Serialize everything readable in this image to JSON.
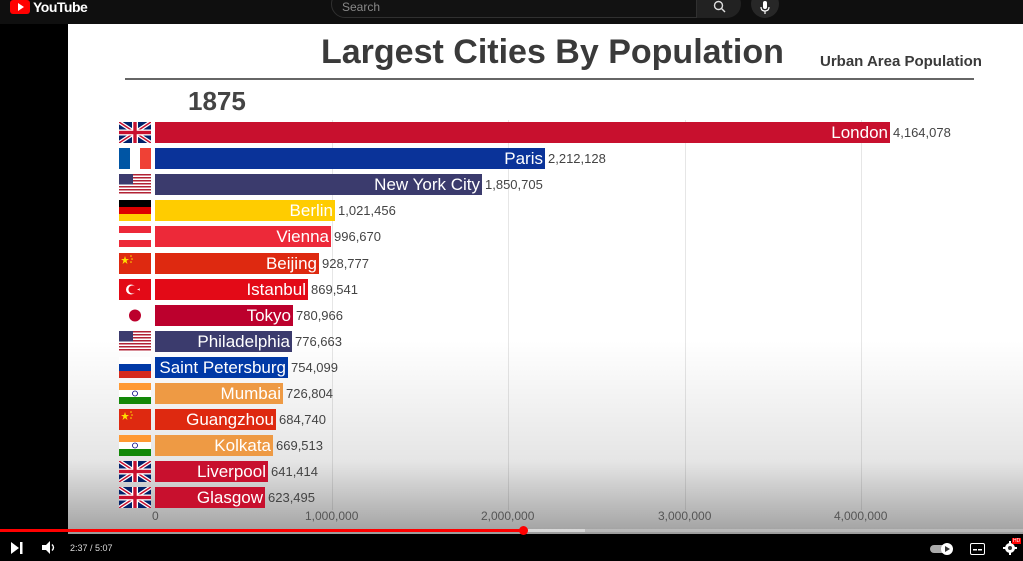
{
  "youtube": {
    "logo_text": "YouTube",
    "search_placeholder": "Search",
    "time_display": "2:37 / 5:07",
    "progress_fraction": 0.511,
    "buffered_fraction": 0.572,
    "hd_badge": "HD"
  },
  "chart_data": {
    "type": "bar",
    "title": "Largest Cities By Population",
    "subtitle": "Urban Area Population",
    "year": "1875",
    "xlim": [
      0,
      4750000
    ],
    "ticks": [
      {
        "value": 0,
        "label": "0"
      },
      {
        "value": 1000000,
        "label": "1,000,000"
      },
      {
        "value": 2000000,
        "label": "2,000,000"
      },
      {
        "value": 3000000,
        "label": "3,000,000"
      },
      {
        "value": 4000000,
        "label": "4,000,000"
      }
    ],
    "bars": [
      {
        "city": "London",
        "value": 4164078,
        "label": "4,164,078",
        "color": "#c8102e",
        "flag": "uk"
      },
      {
        "city": "Paris",
        "value": 2212128,
        "label": "2,212,128",
        "color": "#0a3399",
        "flag": "fr"
      },
      {
        "city": "New York City",
        "value": 1850705,
        "label": "1,850,705",
        "color": "#3b3b6d",
        "flag": "us"
      },
      {
        "city": "Berlin",
        "value": 1021456,
        "label": "1,021,456",
        "color": "#ffcc00",
        "flag": "de"
      },
      {
        "city": "Vienna",
        "value": 996670,
        "label": "996,670",
        "color": "#ed2939",
        "flag": "at"
      },
      {
        "city": "Beijing",
        "value": 928777,
        "label": "928,777",
        "color": "#de2910",
        "flag": "cn"
      },
      {
        "city": "Istanbul",
        "value": 869541,
        "label": "869,541",
        "color": "#e30a17",
        "flag": "tr"
      },
      {
        "city": "Tokyo",
        "value": 780966,
        "label": "780,966",
        "color": "#bc002d",
        "flag": "jp"
      },
      {
        "city": "Philadelphia",
        "value": 776663,
        "label": "776,663",
        "color": "#3b3b6d",
        "flag": "us"
      },
      {
        "city": "Saint Petersburg",
        "value": 754099,
        "label": "754,099",
        "color": "#0039a6",
        "flag": "ru"
      },
      {
        "city": "Mumbai",
        "value": 726804,
        "label": "726,804",
        "color": "#ee9a44",
        "flag": "in"
      },
      {
        "city": "Guangzhou",
        "value": 684740,
        "label": "684,740",
        "color": "#de2910",
        "flag": "cn"
      },
      {
        "city": "Kolkata",
        "value": 669513,
        "label": "669,513",
        "color": "#ee9a44",
        "flag": "in"
      },
      {
        "city": "Liverpool",
        "value": 641414,
        "label": "641,414",
        "color": "#c8102e",
        "flag": "uk"
      },
      {
        "city": "Glasgow",
        "value": 623495,
        "label": "623,495",
        "color": "#c8102e",
        "flag": "uk"
      }
    ]
  }
}
